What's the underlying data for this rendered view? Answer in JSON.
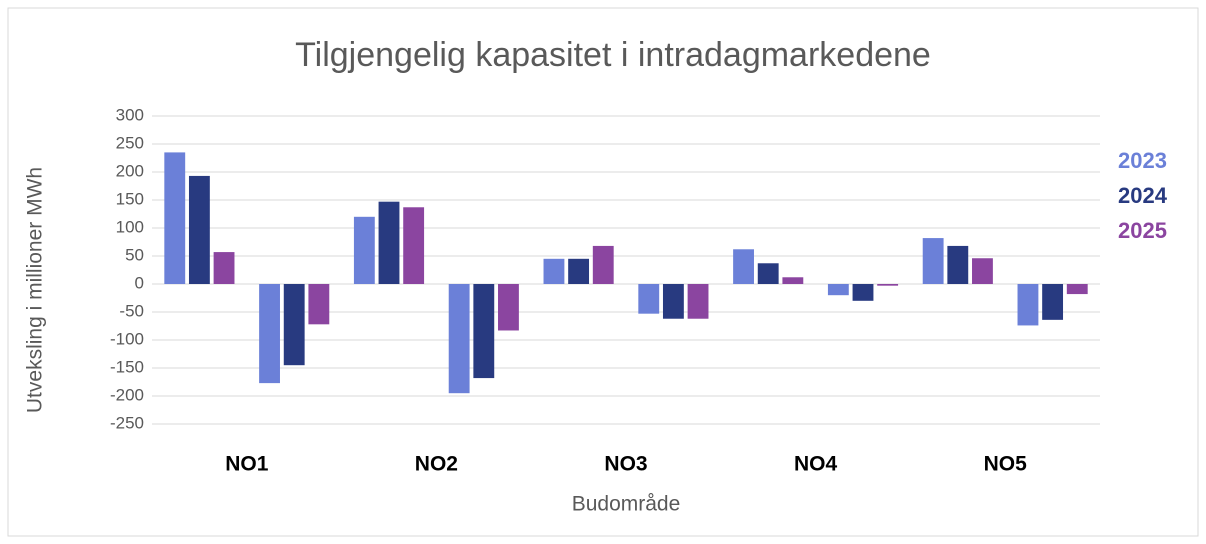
{
  "chart_data": {
    "type": "bar",
    "title": "Tilgjengelig kapasitet i intradagmarkedene",
    "y_label": "Utveksling i millioner MWh",
    "x_label": "Budområde",
    "categories": [
      "NO1",
      null,
      "NO2",
      null,
      "NO3",
      null,
      "NO4",
      null,
      "NO5",
      null
    ],
    "series": [
      {
        "name": "2023",
        "color": "#6b80d8",
        "values": [
          235,
          -177,
          120,
          -195,
          45,
          -53,
          62,
          -20,
          82,
          -74
        ]
      },
      {
        "name": "2024",
        "color": "#283a80",
        "values": [
          193,
          -145,
          147,
          -168,
          45,
          -62,
          37,
          -30,
          68,
          -64
        ]
      },
      {
        "name": "2025",
        "color": "#8b45a0",
        "values": [
          57,
          -72,
          137,
          -83,
          68,
          -62,
          12,
          -3,
          46,
          -18
        ]
      }
    ],
    "ylim": [
      -250,
      300
    ],
    "yticks": [
      -250,
      -200,
      -150,
      -100,
      -50,
      0,
      50,
      100,
      150,
      200,
      250,
      300
    ],
    "grid": true,
    "legend": "right"
  }
}
